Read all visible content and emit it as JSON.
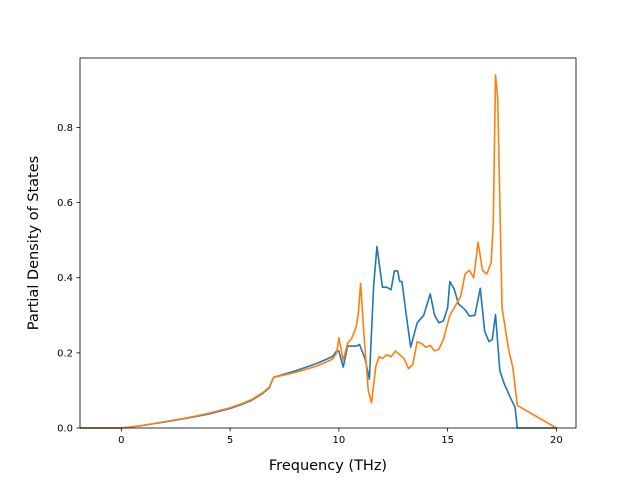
{
  "chart_data": {
    "type": "line",
    "title": "",
    "xlabel": "Frequency (THz)",
    "ylabel": "Partial Density of States",
    "xlim": [
      -1.9,
      20.9
    ],
    "ylim": [
      0.0,
      0.985
    ],
    "x_ticks": [
      0,
      5,
      10,
      15,
      20
    ],
    "x_tick_labels": [
      "0",
      "5",
      "10",
      "15",
      "20"
    ],
    "y_ticks": [
      0.0,
      0.2,
      0.4,
      0.6,
      0.8
    ],
    "y_tick_labels": [
      "0.0",
      "0.2",
      "0.4",
      "0.6",
      "0.8"
    ],
    "grid": false,
    "legend": "none",
    "series": [
      {
        "color": "#1f77b4",
        "x": [
          -1.9,
          0.0,
          0.5,
          1.0,
          2.0,
          3.0,
          4.0,
          5.0,
          5.5,
          6.0,
          6.5,
          6.8,
          7.0,
          8.0,
          9.0,
          9.7,
          9.9,
          10.0,
          10.2,
          10.4,
          10.6,
          10.8,
          10.95,
          11.2,
          11.4,
          11.6,
          11.75,
          11.85,
          12.0,
          12.2,
          12.4,
          12.55,
          12.7,
          12.8,
          12.9,
          13.1,
          13.3,
          13.6,
          13.9,
          14.2,
          14.4,
          14.6,
          14.8,
          15.0,
          15.1,
          15.3,
          15.5,
          15.8,
          16.0,
          16.25,
          16.5,
          16.7,
          16.9,
          17.05,
          17.2,
          17.4,
          17.6,
          17.85,
          18.1,
          18.2,
          20.0
        ],
        "y": [
          0.0,
          0.0,
          0.003,
          0.007,
          0.016,
          0.026,
          0.037,
          0.052,
          0.062,
          0.074,
          0.092,
          0.107,
          0.135,
          0.152,
          0.172,
          0.19,
          0.205,
          0.205,
          0.162,
          0.218,
          0.218,
          0.218,
          0.222,
          0.185,
          0.13,
          0.38,
          0.483,
          0.44,
          0.375,
          0.375,
          0.368,
          0.418,
          0.418,
          0.39,
          0.39,
          0.3,
          0.215,
          0.28,
          0.3,
          0.357,
          0.3,
          0.28,
          0.285,
          0.32,
          0.39,
          0.37,
          0.33,
          0.315,
          0.298,
          0.3,
          0.372,
          0.258,
          0.23,
          0.235,
          0.302,
          0.152,
          0.118,
          0.085,
          0.055,
          0.0,
          0.0
        ]
      },
      {
        "color": "#ff7f0e",
        "x": [
          -1.9,
          0.0,
          0.5,
          1.0,
          2.0,
          3.0,
          4.0,
          5.0,
          5.5,
          6.0,
          6.5,
          6.8,
          7.0,
          8.0,
          9.0,
          9.7,
          9.9,
          10.0,
          10.2,
          10.4,
          10.6,
          10.8,
          10.9,
          11.0,
          11.15,
          11.35,
          11.5,
          11.7,
          11.85,
          12.0,
          12.2,
          12.4,
          12.6,
          12.8,
          13.0,
          13.2,
          13.4,
          13.6,
          13.8,
          14.0,
          14.2,
          14.4,
          14.6,
          14.8,
          15.1,
          15.4,
          15.6,
          15.8,
          16.0,
          16.2,
          16.4,
          16.6,
          16.8,
          17.0,
          17.1,
          17.2,
          17.3,
          17.5,
          17.8,
          18.0,
          18.2,
          20.0
        ],
        "y": [
          0.0,
          0.0,
          0.003,
          0.007,
          0.017,
          0.027,
          0.039,
          0.054,
          0.064,
          0.076,
          0.094,
          0.109,
          0.135,
          0.148,
          0.165,
          0.183,
          0.2,
          0.24,
          0.18,
          0.225,
          0.24,
          0.27,
          0.31,
          0.385,
          0.25,
          0.1,
          0.067,
          0.165,
          0.19,
          0.185,
          0.195,
          0.19,
          0.205,
          0.195,
          0.185,
          0.158,
          0.17,
          0.23,
          0.225,
          0.215,
          0.22,
          0.205,
          0.21,
          0.235,
          0.3,
          0.33,
          0.35,
          0.41,
          0.42,
          0.4,
          0.495,
          0.42,
          0.41,
          0.44,
          0.55,
          0.94,
          0.88,
          0.32,
          0.21,
          0.16,
          0.06,
          0.0
        ]
      }
    ]
  }
}
